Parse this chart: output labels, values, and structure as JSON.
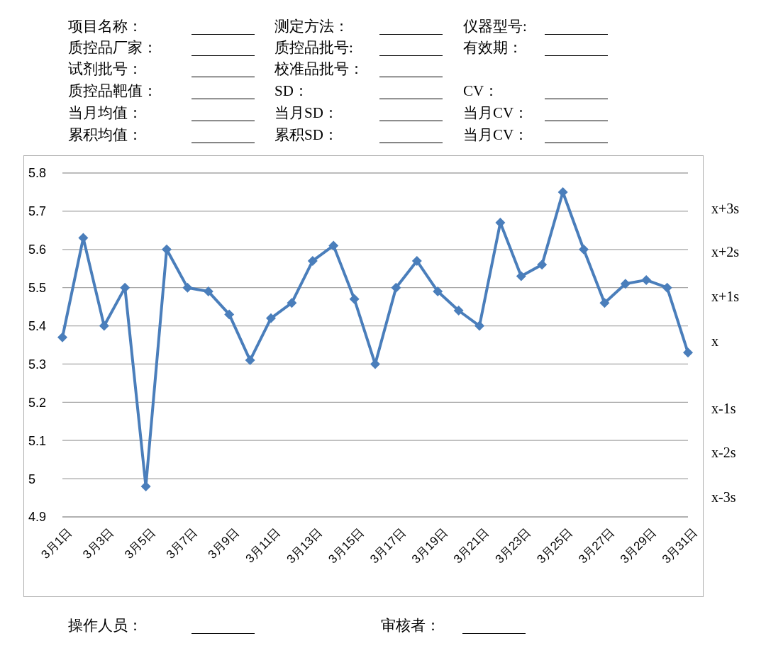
{
  "chart_data": {
    "type": "line",
    "annotations": [
      "项目名称：",
      "测定方法：",
      "仪器型号:",
      "质控品厂家：",
      "质控品批号:",
      "有效期：",
      "试剂批号：",
      "校准品批号：",
      "质控品靶值：",
      "SD：",
      "CV：",
      "当月均值：",
      "当月SD：",
      "当月CV：",
      "累积均值：",
      "累积SD：",
      "当月CV：",
      "操作人员：",
      "审核者：",
      "x+3s",
      "x+2s",
      "x+1s",
      "x",
      "x-1s",
      "x-2s",
      "x-3s"
    ],
    "categories": [
      "3月1日",
      null,
      "3月3日",
      null,
      "3月5日",
      null,
      "3月7日",
      null,
      "3月9日",
      null,
      "3月11日",
      null,
      "3月13日",
      null,
      "3月15日",
      null,
      "3月17日",
      null,
      "3月19日",
      null,
      "3月21日",
      null,
      "3月23日",
      null,
      "3月25日",
      null,
      "3月27日",
      null,
      "3月29日",
      null,
      "3月31日"
    ],
    "series": [
      {
        "color": "#4a7ebb",
        "values": [
          5.37,
          5.63,
          5.4,
          5.5,
          4.98,
          5.6,
          5.5,
          5.49,
          5.43,
          5.31,
          5.42,
          5.46,
          5.57,
          5.61,
          5.47,
          5.3,
          5.5,
          5.57,
          5.49,
          5.44,
          5.4,
          5.67,
          5.53,
          5.56,
          5.75,
          5.6,
          5.46,
          5.51,
          5.52,
          5.5,
          5.33
        ]
      }
    ],
    "ylim": [
      4.9,
      5.8
    ],
    "yticks": [
      4.9,
      5,
      5.1,
      5.2,
      5.3,
      5.4,
      5.5,
      5.6,
      5.7,
      5.8
    ],
    "grid": "y",
    "legend": false,
    "marker": "diamond",
    "line_style": "solid"
  }
}
